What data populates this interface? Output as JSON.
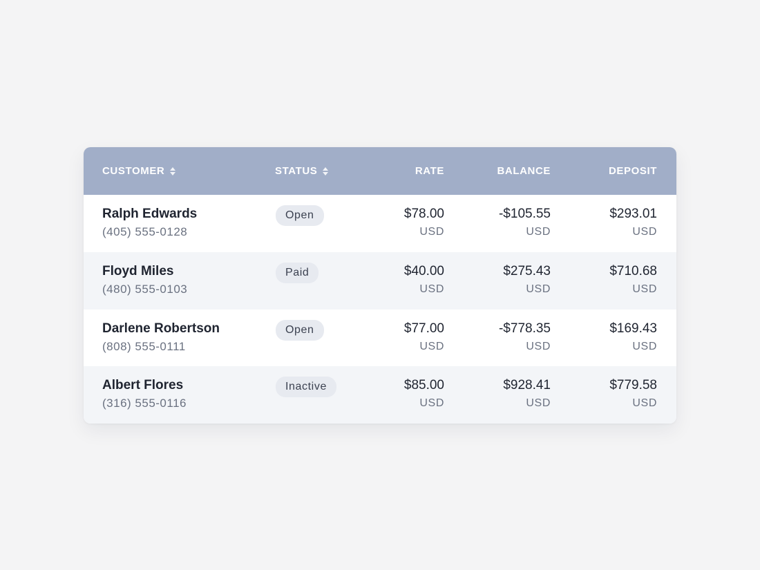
{
  "table": {
    "headers": {
      "customer": "CUSTOMER",
      "status": "STATUS",
      "rate": "RATE",
      "balance": "BALANCE",
      "deposit": "DEPOSIT"
    },
    "rows": [
      {
        "name": "Ralph Edwards",
        "phone": "(405) 555-0128",
        "status": "Open",
        "rate": "$78.00",
        "rate_unit": "USD",
        "balance": "-$105.55",
        "balance_unit": "USD",
        "deposit": "$293.01",
        "deposit_unit": "USD"
      },
      {
        "name": "Floyd Miles",
        "phone": "(480) 555-0103",
        "status": "Paid",
        "rate": "$40.00",
        "rate_unit": "USD",
        "balance": "$275.43",
        "balance_unit": "USD",
        "deposit": "$710.68",
        "deposit_unit": "USD"
      },
      {
        "name": "Darlene Robertson",
        "phone": "(808) 555-0111",
        "status": "Open",
        "rate": "$77.00",
        "rate_unit": "USD",
        "balance": "-$778.35",
        "balance_unit": "USD",
        "deposit": "$169.43",
        "deposit_unit": "USD"
      },
      {
        "name": "Albert Flores",
        "phone": "(316) 555-0116",
        "status": "Inactive",
        "rate": "$85.00",
        "rate_unit": "USD",
        "balance": "$928.41",
        "balance_unit": "USD",
        "deposit": "$779.58",
        "deposit_unit": "USD"
      }
    ]
  },
  "icons": {
    "customer_sort": "sort-icon",
    "status_sort": "sort-icon"
  },
  "colors": {
    "header_bg": "#a1aec8",
    "row_alt_bg": "#f3f5f8",
    "badge_bg": "#e7eaf0",
    "page_bg": "#f4f4f5"
  }
}
